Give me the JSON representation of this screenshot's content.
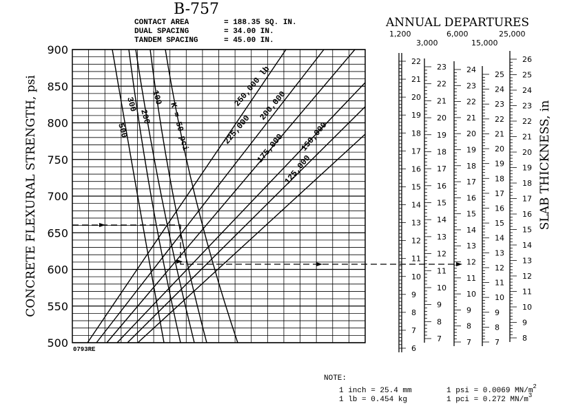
{
  "title": "B-757",
  "specs": [
    {
      "label": "CONTACT AREA",
      "value": "= 188.35 SQ. IN."
    },
    {
      "label": "DUAL SPACING",
      "value": "= 34.00 IN."
    },
    {
      "label": "TANDEM SPACING",
      "value": "= 45.00 IN."
    }
  ],
  "y_axis": {
    "label": "CONCRETE FLEXURAL STRENGTH, psi",
    "ticks": [
      900,
      850,
      800,
      750,
      700,
      650,
      600,
      550,
      500
    ]
  },
  "k_labels": [
    "500",
    "300",
    "200",
    "100",
    "K = 50 pci"
  ],
  "load_labels": [
    "250,000 lb",
    "225,000",
    "200,000",
    "175,000",
    "150,000",
    "125,000"
  ],
  "code": "0793RE",
  "departures": {
    "title": "ANNUAL DEPARTURES",
    "labels": [
      "1,200",
      "3,000",
      "6,000",
      "15,000",
      "25,000"
    ]
  },
  "scales": [
    [
      22,
      21,
      20,
      19,
      18,
      17,
      16,
      15,
      14,
      13,
      12,
      11,
      10,
      9,
      8,
      7,
      6
    ],
    [
      23,
      22,
      21,
      20,
      19,
      18,
      17,
      16,
      15,
      14,
      13,
      12,
      11,
      10,
      9,
      8,
      7
    ],
    [
      24,
      23,
      22,
      21,
      20,
      19,
      18,
      17,
      16,
      15,
      14,
      13,
      12,
      11,
      10,
      9,
      8,
      7
    ],
    [
      25,
      24,
      23,
      22,
      21,
      20,
      19,
      18,
      17,
      16,
      15,
      14,
      13,
      12,
      11,
      10,
      9,
      8,
      7
    ],
    [
      26,
      25,
      24,
      23,
      22,
      21,
      20,
      19,
      18,
      17,
      16,
      15,
      14,
      13,
      12,
      11,
      10,
      9,
      8
    ]
  ],
  "right_label": "SLAB THICKNESS, in",
  "note": {
    "title": "NOTE:",
    "lines": [
      {
        "text": "1 inch = 25.4 mm"
      },
      {
        "text": "1 psi = 0.0069 MN/m",
        "sup": "2"
      },
      {
        "text": "1 lb = 0.454 kg"
      },
      {
        "text": "1 pci = 0.272 MN/m",
        "sup": "3"
      }
    ]
  }
}
